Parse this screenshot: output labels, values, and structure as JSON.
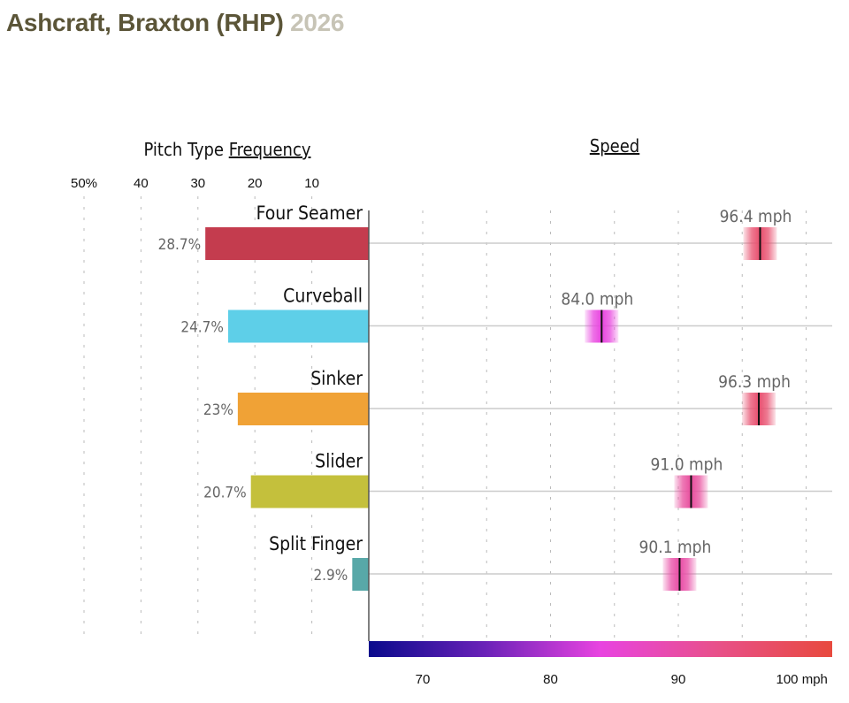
{
  "header": {
    "player": "Ashcraft, Braxton (RHP)",
    "year": "2026"
  },
  "chart_data": {
    "type": "bar",
    "title": "Ashcraft, Braxton (RHP) 2026",
    "frequency": {
      "heading_prefix": "Pitch Type ",
      "heading_link": "Frequency",
      "ticks": [
        50,
        40,
        30,
        20,
        10
      ],
      "tick_labels": [
        "50%",
        "40",
        "30",
        "20",
        "10"
      ],
      "xlim": [
        0,
        50
      ]
    },
    "speed": {
      "heading": "Speed",
      "ticks": [
        70,
        80,
        90,
        100
      ],
      "tick_labels": [
        "70",
        "80",
        "90",
        "100 mph"
      ],
      "gridlines": [
        70,
        75,
        80,
        85,
        90,
        95,
        100
      ],
      "xlim": [
        65.8,
        102
      ],
      "colorscale": [
        "#0a0a8c",
        "#6a22b8",
        "#e844e0",
        "#e8508a",
        "#e84a3e"
      ]
    },
    "categories": [
      "Four Seamer",
      "Curveball",
      "Sinker",
      "Slider",
      "Split Finger"
    ],
    "series": [
      {
        "name": "Frequency",
        "values": [
          28.7,
          24.7,
          23,
          20.7,
          2.9
        ],
        "labels": [
          "28.7%",
          "24.7%",
          "23%",
          "20.7%",
          "2.9%"
        ],
        "colors": [
          "#c43c4e",
          "#5ecfe8",
          "#f0a236",
          "#c4c03c",
          "#58a8a8"
        ]
      },
      {
        "name": "Speed",
        "values": [
          96.4,
          84.0,
          96.3,
          91.0,
          90.1
        ],
        "labels": [
          "96.4 mph",
          "84.0 mph",
          "96.3 mph",
          "91.0 mph",
          "90.1 mph"
        ]
      }
    ]
  }
}
